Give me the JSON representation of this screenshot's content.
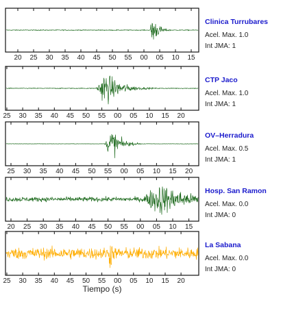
{
  "chart_data": {
    "type": "line",
    "xlabel": "Tiempo (s)",
    "note": "Seismograms; x ticks are seconds of the minute (mm:ss wrap at 60 → 00)",
    "panels": [
      {
        "station": "Clinica Turrubares",
        "acel_text": "Acel. Max. 1.0",
        "jma_text": "Int JMA: 1",
        "color": "#1f6b1f",
        "ticks": [
          "20",
          "25",
          "30",
          "35",
          "40",
          "45",
          "50",
          "55",
          "00",
          "05",
          "10",
          "15"
        ],
        "event": {
          "onset_tick": 8.4,
          "peak_tick": 8.5,
          "peak_amp": 0.95,
          "decay": 0.35,
          "noise": 0.02
        }
      },
      {
        "station": "CTP Jaco",
        "acel_text": "Acel. Max. 1.0",
        "jma_text": "Int JMA: 1",
        "color": "#1f6b1f",
        "ticks": [
          "25",
          "30",
          "35",
          "40",
          "45",
          "50",
          "55",
          "00",
          "05",
          "10",
          "15",
          "20"
        ],
        "event": {
          "onset_tick": 5.6,
          "peak_tick": 6.2,
          "peak_amp": 0.9,
          "decay": 0.9,
          "noise": 0.02
        }
      },
      {
        "station": "OV–Herradura",
        "acel_text": "Acel. Max. 0.5",
        "jma_text": "Int JMA: 1",
        "color": "#1f6b1f",
        "ticks": [
          "25",
          "30",
          "35",
          "40",
          "45",
          "50",
          "55",
          "00",
          "05",
          "10",
          "15",
          "20"
        ],
        "event": {
          "onset_tick": 5.8,
          "peak_tick": 6.2,
          "peak_amp": 0.85,
          "decay": 0.55,
          "noise": 0.01
        }
      },
      {
        "station": "Hosp. San Ramon",
        "acel_text": "Acel. Max. 0.0",
        "jma_text": "Int JMA: 0",
        "color": "#1f6b1f",
        "ticks": [
          "20",
          "25",
          "30",
          "35",
          "40",
          "45",
          "50",
          "55",
          "00",
          "05",
          "10",
          "15"
        ],
        "event": {
          "onset_tick": 7.9,
          "peak_tick": 9.2,
          "peak_amp": 0.85,
          "decay": 1.8,
          "noise": 0.12
        }
      },
      {
        "station": "La Sabana",
        "acel_text": "Acel. Max. 0.0",
        "jma_text": "Int JMA: 0",
        "color": "#ffad00",
        "ticks": [
          "25",
          "30",
          "35",
          "40",
          "45",
          "50",
          "55",
          "00",
          "05",
          "10",
          "15",
          "20"
        ],
        "event": {
          "onset_tick": 6.4,
          "peak_tick": 6.5,
          "peak_amp": 0.95,
          "decay": 0.25,
          "noise": 0.3
        }
      }
    ]
  }
}
